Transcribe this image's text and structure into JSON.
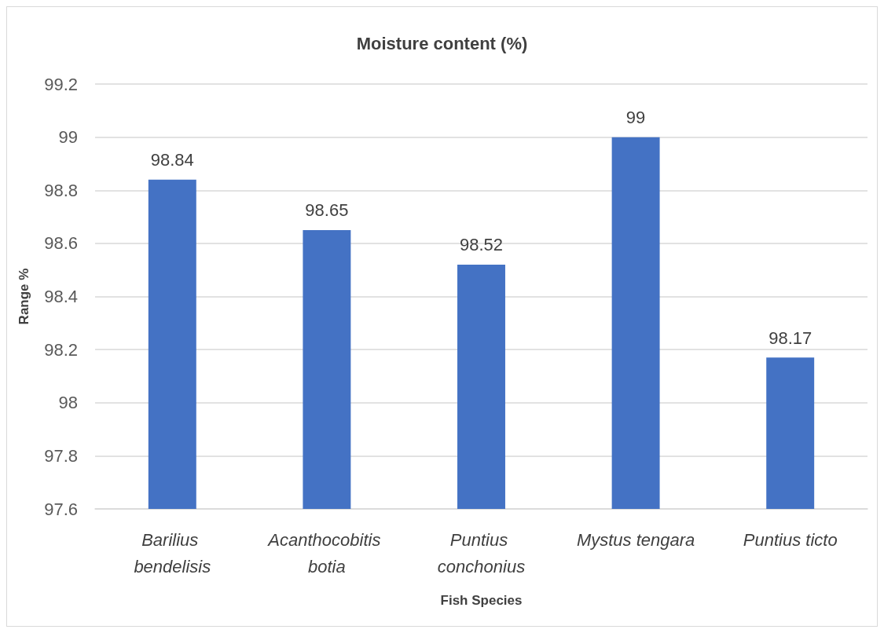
{
  "chart_data": {
    "type": "bar",
    "title": "Moisture content (%)",
    "xlabel": "Fish Species",
    "ylabel": "Range %",
    "categories": [
      "Barilius bendelisis",
      "Acanthocobitis botia",
      "Puntius conchonius",
      "Mystus tengara",
      "Puntius ticto"
    ],
    "values": [
      98.84,
      98.65,
      98.52,
      99,
      98.17
    ],
    "color": "#4472c4",
    "ylim": [
      97.6,
      99.2
    ],
    "yticks": [
      97.6,
      97.8,
      98,
      98.2,
      98.4,
      98.6,
      98.8,
      99,
      99.2
    ],
    "grid": "y",
    "data_labels": true
  }
}
